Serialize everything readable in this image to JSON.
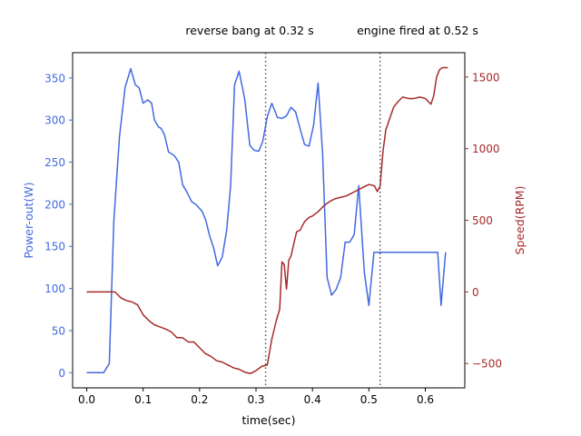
{
  "chart_data": {
    "type": "line",
    "xlabel": "time(sec)",
    "xlim": [
      -0.025,
      0.67
    ],
    "xticks": [
      0.0,
      0.1,
      0.2,
      0.3,
      0.4,
      0.5,
      0.6
    ],
    "xtick_labels": [
      "0.0",
      "0.1",
      "0.2",
      "0.3",
      "0.4",
      "0.5",
      "0.6"
    ],
    "grid": false,
    "axes": {
      "left": {
        "label": "Power-out(W)",
        "color": "#4169e1",
        "ylim": [
          -18,
          380
        ],
        "ticks": [
          0,
          50,
          100,
          150,
          200,
          250,
          300,
          350
        ],
        "tick_labels": [
          "0",
          "50",
          "100",
          "150",
          "200",
          "250",
          "300",
          "350"
        ]
      },
      "right": {
        "label": "Speed(RPM)",
        "color": "#a52a2a",
        "ylim": [
          -670,
          1670
        ],
        "ticks": [
          -500,
          0,
          500,
          1000,
          1500
        ],
        "tick_labels": [
          "−500",
          "0",
          "500",
          "1000",
          "1500"
        ]
      }
    },
    "series": [
      {
        "axis": "left",
        "color": "#4169e1",
        "x": [
          0.0,
          0.01,
          0.02,
          0.03,
          0.04,
          0.048,
          0.058,
          0.068,
          0.078,
          0.086,
          0.093,
          0.1,
          0.108,
          0.115,
          0.12,
          0.127,
          0.132,
          0.138,
          0.145,
          0.155,
          0.163,
          0.17,
          0.178,
          0.186,
          0.193,
          0.2,
          0.205,
          0.211,
          0.218,
          0.225,
          0.232,
          0.24,
          0.248,
          0.255,
          0.262,
          0.27,
          0.28,
          0.289,
          0.297,
          0.305,
          0.312,
          0.32,
          0.328,
          0.338,
          0.346,
          0.354,
          0.362,
          0.37,
          0.378,
          0.386,
          0.394,
          0.402,
          0.41,
          0.418,
          0.426,
          0.434,
          0.442,
          0.45,
          0.458,
          0.466,
          0.474,
          0.482,
          0.492,
          0.5,
          0.509,
          0.515,
          0.522,
          0.532,
          0.54,
          0.548,
          0.556,
          0.563,
          0.57,
          0.578,
          0.585,
          0.592,
          0.6,
          0.607,
          0.614,
          0.622,
          0.628,
          0.636
        ],
        "y": [
          0,
          0,
          0,
          0,
          11,
          180,
          280,
          339,
          361,
          342,
          338,
          320,
          324,
          320,
          300,
          292,
          290,
          282,
          262,
          258,
          250,
          223,
          214,
          203,
          200,
          195,
          191,
          181,
          162,
          148,
          127,
          137,
          169,
          222,
          342,
          358,
          325,
          270,
          264,
          263,
          275,
          304,
          320,
          303,
          302,
          305,
          315,
          310,
          290,
          271,
          269,
          294,
          344,
          260,
          113,
          92,
          99,
          113,
          155,
          155,
          164,
          222,
          119,
          80,
          143,
          143,
          143,
          143,
          143,
          143,
          143,
          143,
          143,
          143,
          143,
          143,
          143,
          143,
          143,
          143,
          80,
          143
        ]
      },
      {
        "axis": "right",
        "color": "#a52a2a",
        "x": [
          0.0,
          0.02,
          0.04,
          0.05,
          0.06,
          0.07,
          0.08,
          0.09,
          0.1,
          0.11,
          0.12,
          0.13,
          0.14,
          0.15,
          0.16,
          0.17,
          0.18,
          0.19,
          0.2,
          0.21,
          0.22,
          0.23,
          0.24,
          0.25,
          0.26,
          0.27,
          0.28,
          0.29,
          0.3,
          0.31,
          0.32,
          0.328,
          0.336,
          0.342,
          0.346,
          0.35,
          0.354,
          0.358,
          0.362,
          0.366,
          0.372,
          0.378,
          0.386,
          0.394,
          0.4,
          0.41,
          0.42,
          0.43,
          0.44,
          0.45,
          0.46,
          0.47,
          0.48,
          0.49,
          0.5,
          0.51,
          0.515,
          0.52,
          0.525,
          0.53,
          0.536,
          0.544,
          0.552,
          0.56,
          0.57,
          0.58,
          0.59,
          0.6,
          0.605,
          0.61,
          0.615,
          0.62,
          0.625,
          0.63,
          0.64
        ],
        "y": [
          0,
          0,
          0,
          0,
          -40,
          -60,
          -70,
          -90,
          -160,
          -200,
          -230,
          -245,
          -260,
          -280,
          -320,
          -320,
          -350,
          -350,
          -390,
          -430,
          -450,
          -480,
          -490,
          -510,
          -530,
          -540,
          -560,
          -570,
          -550,
          -520,
          -510,
          -330,
          -200,
          -120,
          210,
          190,
          20,
          220,
          250,
          320,
          420,
          430,
          490,
          520,
          530,
          560,
          600,
          630,
          650,
          660,
          670,
          690,
          710,
          730,
          750,
          740,
          700,
          740,
          980,
          1130,
          1200,
          1290,
          1330,
          1360,
          1350,
          1350,
          1360,
          1350,
          1330,
          1310,
          1370,
          1500,
          1550,
          1565,
          1565
        ]
      }
    ],
    "annotations": [
      {
        "x": 0.317,
        "text": "reverse bang at 0.32 s",
        "style": "dotted-vertical"
      },
      {
        "x": 0.52,
        "text": "engine fired at 0.52 s",
        "style": "dotted-vertical"
      }
    ]
  }
}
